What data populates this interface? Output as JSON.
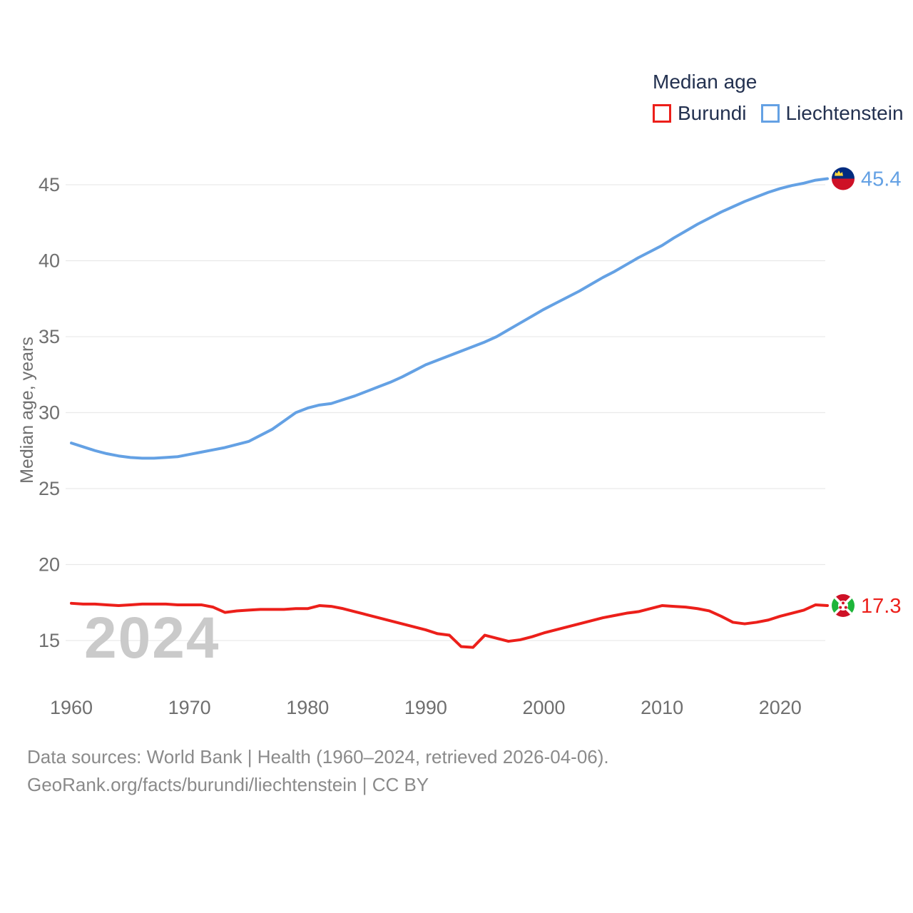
{
  "legend": {
    "title": "Median age",
    "items": [
      {
        "label": "Burundi",
        "color": "#ec1f1a"
      },
      {
        "label": "Liechtenstein",
        "color": "#64a1e4"
      }
    ]
  },
  "watermark": "2024",
  "footer": {
    "line1": "Data sources: World Bank | Health (1960–2024, retrieved 2026-04-06).",
    "line2": "GeoRank.org/facts/burundi/liechtenstein | CC BY"
  },
  "colors": {
    "burundi_line": "#ec1f1a",
    "liechtenstein_line": "#64a1e4",
    "grid": "#e9e9e9",
    "axis_text": "#6f6f6f",
    "legend_text": "#233150",
    "watermark": "#cacaca",
    "bi_flag_red": "#ce1126",
    "bi_flag_green": "#1eb53a",
    "li_flag_blue": "#002b7f",
    "li_flag_red": "#ce1126",
    "li_flag_gold": "#ffd83c"
  },
  "chart_data": {
    "type": "line",
    "title": "Median age",
    "xlabel": "",
    "ylabel": "Median age, years",
    "x_range": [
      1960,
      2024
    ],
    "ylim": [
      13,
      47
    ],
    "x_ticks": [
      1960,
      1970,
      1980,
      1990,
      2000,
      2010,
      2020
    ],
    "y_ticks": [
      15,
      20,
      25,
      30,
      35,
      40,
      45
    ],
    "grid": true,
    "legend_position": "top-right",
    "years": [
      1960,
      1961,
      1962,
      1963,
      1964,
      1965,
      1966,
      1967,
      1968,
      1969,
      1970,
      1971,
      1972,
      1973,
      1974,
      1975,
      1976,
      1977,
      1978,
      1979,
      1980,
      1981,
      1982,
      1983,
      1984,
      1985,
      1986,
      1987,
      1988,
      1989,
      1990,
      1991,
      1992,
      1993,
      1994,
      1995,
      1996,
      1997,
      1998,
      1999,
      2000,
      2001,
      2002,
      2003,
      2004,
      2005,
      2006,
      2007,
      2008,
      2009,
      2010,
      2011,
      2012,
      2013,
      2014,
      2015,
      2016,
      2017,
      2018,
      2019,
      2020,
      2021,
      2022,
      2023,
      2024
    ],
    "series": [
      {
        "name": "Burundi",
        "color": "#ec1f1a",
        "end_label": "17.3",
        "end_value": 17.3,
        "values": [
          17.45,
          17.4,
          17.4,
          17.35,
          17.3,
          17.35,
          17.4,
          17.4,
          17.4,
          17.35,
          17.35,
          17.35,
          17.2,
          16.85,
          16.95,
          17.0,
          17.05,
          17.05,
          17.05,
          17.1,
          17.1,
          17.3,
          17.25,
          17.1,
          16.9,
          16.7,
          16.5,
          16.3,
          16.1,
          15.9,
          15.7,
          15.45,
          15.35,
          14.6,
          14.55,
          15.35,
          15.15,
          14.95,
          15.05,
          15.25,
          15.5,
          15.7,
          15.9,
          16.1,
          16.3,
          16.5,
          16.65,
          16.8,
          16.9,
          17.1,
          17.3,
          17.25,
          17.2,
          17.1,
          16.95,
          16.6,
          16.2,
          16.1,
          16.2,
          16.35,
          16.6,
          16.8,
          17.0,
          17.35,
          17.3
        ]
      },
      {
        "name": "Liechtenstein",
        "color": "#64a1e4",
        "end_label": "45.4",
        "end_value": 45.4,
        "values": [
          28.0,
          27.75,
          27.5,
          27.3,
          27.15,
          27.05,
          27.0,
          27.0,
          27.05,
          27.1,
          27.25,
          27.4,
          27.55,
          27.7,
          27.9,
          28.1,
          28.5,
          28.9,
          29.45,
          30.0,
          30.3,
          30.5,
          30.6,
          30.85,
          31.1,
          31.4,
          31.7,
          32.0,
          32.35,
          32.75,
          33.15,
          33.45,
          33.75,
          34.05,
          34.35,
          34.65,
          35.0,
          35.45,
          35.9,
          36.35,
          36.8,
          37.2,
          37.6,
          38.0,
          38.45,
          38.9,
          39.3,
          39.75,
          40.2,
          40.6,
          41.0,
          41.5,
          41.95,
          42.4,
          42.8,
          43.2,
          43.55,
          43.9,
          44.2,
          44.5,
          44.75,
          44.95,
          45.1,
          45.3,
          45.4
        ]
      }
    ]
  }
}
